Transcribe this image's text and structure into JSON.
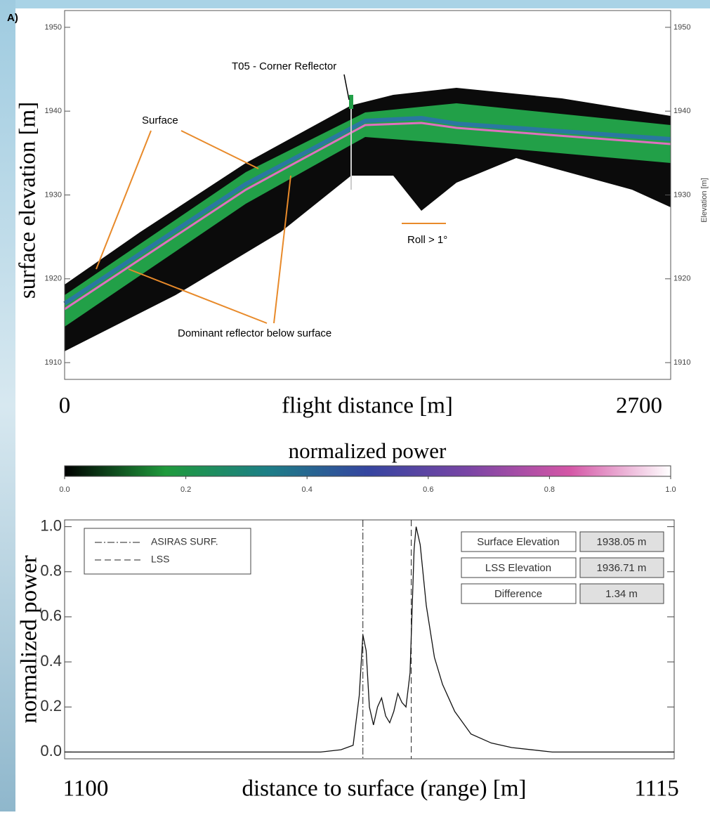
{
  "chart_data": [
    {
      "type": "radargram",
      "panel_label": "A)",
      "xlabel": "flight distance [m]",
      "ylabel": "surface elevation [m]",
      "y2label": "Elevation [m]",
      "xlim": [
        0,
        2700
      ],
      "xticks": [
        0,
        2700
      ],
      "ylim": [
        1908,
        1952
      ],
      "yticks": [
        1910,
        1920,
        1930,
        1940,
        1950
      ],
      "annotations": [
        "T05 - Corner Reflector",
        "Surface",
        "Roll > 1°",
        "Dominant reflector below surface"
      ]
    },
    {
      "type": "colorbar",
      "title": "normalized power",
      "colors": [
        "#000000",
        "#1f9a3c",
        "#1d7f86",
        "#3545a0",
        "#7a45a5",
        "#d456a6",
        "#ffffff"
      ],
      "xlim": [
        0,
        1
      ],
      "xticks": [
        {
          "value": 0,
          "label": "0.0"
        },
        0.2,
        0.4,
        0.6,
        0.8,
        {
          "value": 1,
          "label": "1.0"
        }
      ]
    },
    {
      "type": "line",
      "xlabel": "distance to surface (range) [m]",
      "ylabel": "normalized power",
      "xlim": [
        1100,
        1115
      ],
      "xticks": [
        1100,
        1115
      ],
      "ylim": [
        -0.03,
        1.03
      ],
      "yticks": [
        {
          "value": 0,
          "label": "0.0"
        },
        0.2,
        0.4,
        0.6,
        0.8,
        {
          "value": 1,
          "label": "1.0"
        }
      ],
      "x": [
        1100,
        1106.3,
        1106.8,
        1107.1,
        1107.25,
        1107.34,
        1107.42,
        1107.5,
        1107.6,
        1107.7,
        1107.8,
        1107.9,
        1108.0,
        1108.1,
        1108.2,
        1108.3,
        1108.4,
        1108.5,
        1108.6,
        1108.65,
        1108.75,
        1108.9,
        1109.1,
        1109.3,
        1109.6,
        1110.0,
        1110.5,
        1111.0,
        1111.5,
        1112.0,
        1115
      ],
      "values": [
        0,
        0,
        0.01,
        0.03,
        0.25,
        0.52,
        0.45,
        0.2,
        0.12,
        0.2,
        0.24,
        0.16,
        0.13,
        0.18,
        0.26,
        0.22,
        0.2,
        0.35,
        0.9,
        1.0,
        0.92,
        0.65,
        0.42,
        0.3,
        0.18,
        0.08,
        0.04,
        0.02,
        0.01,
        0,
        0
      ],
      "vlines": [
        {
          "name": "ASIRAS SURF.",
          "x": 1107.34,
          "dash": "10 3 2 3"
        },
        {
          "name": "LSS",
          "x": 1108.53,
          "dash": "9 5"
        }
      ],
      "table": [
        [
          "Surface Elevation",
          "1938.05 m"
        ],
        [
          "LSS Elevation",
          "1936.71 m"
        ],
        [
          "Difference",
          "1.34 m"
        ]
      ]
    }
  ]
}
